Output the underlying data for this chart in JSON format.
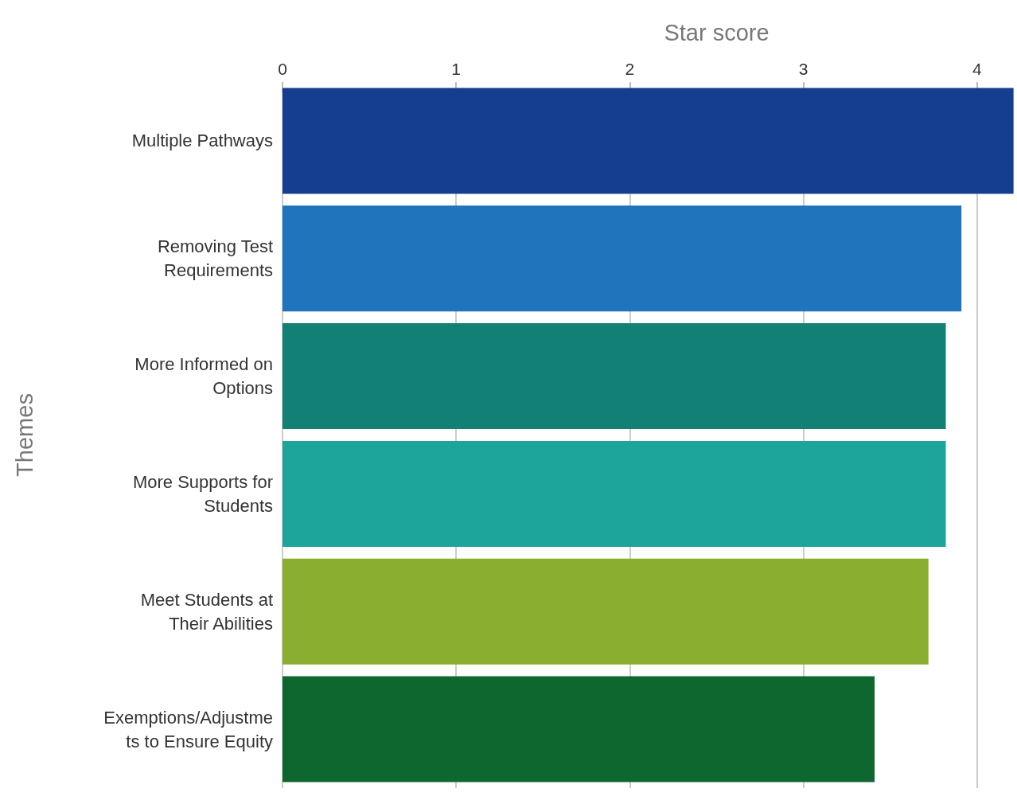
{
  "chart_data": {
    "type": "bar",
    "orientation": "horizontal",
    "xlabel": "Star score",
    "ylabel": "Themes",
    "categories": [
      "Multiple Pathways",
      "Removing Test\nRequirements",
      "More Informed on\nOptions",
      "More Supports for\nStudents",
      "Meet Students at\nTheir Abilities",
      "Exemptions/Adjustme\nts to Ensure Equity"
    ],
    "values": [
      4.21,
      3.91,
      3.82,
      3.82,
      3.72,
      3.41
    ],
    "colors": [
      "#153e90",
      "#1f74bb",
      "#138075",
      "#1ea59b",
      "#8aae30",
      "#0d672f"
    ],
    "xlim": [
      0,
      4.23
    ],
    "xticks": [
      0,
      1,
      2,
      3,
      4
    ],
    "grid": "x"
  }
}
